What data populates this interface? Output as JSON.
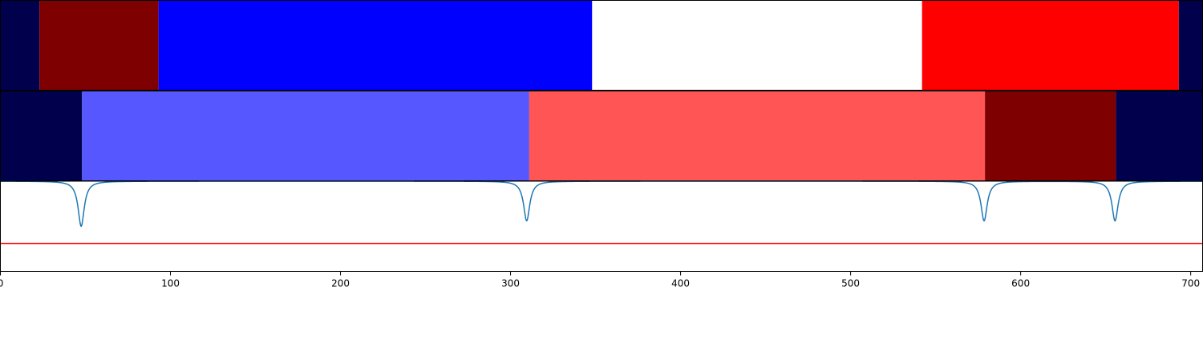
{
  "chart_data": {
    "type": "segmentation-track",
    "xlim": [
      0,
      707
    ],
    "x_ticks": [
      0,
      100,
      200,
      300,
      400,
      500,
      600,
      700
    ],
    "x_tick_labels": [
      "0",
      "100",
      "200",
      "300",
      "400",
      "500",
      "600",
      "700"
    ],
    "panels": [
      {
        "name": "",
        "type": "segments",
        "segments": [
          {
            "start": 0,
            "end": 23,
            "color": "#00004c"
          },
          {
            "start": 23,
            "end": 93,
            "color": "#7f0000"
          },
          {
            "start": 93,
            "end": 348,
            "color": "#0000ff"
          },
          {
            "start": 348,
            "end": 542,
            "color": "#ffffff"
          },
          {
            "start": 542,
            "end": 693,
            "color": "#ff0000"
          },
          {
            "start": 693,
            "end": 707,
            "color": "#00004c"
          }
        ]
      },
      {
        "name": "",
        "type": "segments",
        "segments": [
          {
            "start": 0,
            "end": 48,
            "color": "#00004c"
          },
          {
            "start": 48,
            "end": 311,
            "color": "#5757ff"
          },
          {
            "start": 311,
            "end": 579,
            "color": "#ff5555"
          },
          {
            "start": 579,
            "end": 656,
            "color": "#7f0000"
          },
          {
            "start": 656,
            "end": 707,
            "color": "#00004c"
          }
        ]
      },
      {
        "name": "",
        "type": "line",
        "ylim": [
          0,
          1
        ],
        "baseline": 1.0,
        "threshold": 0.31,
        "line_color": "#1f77b4",
        "threshold_color": "#ff0000",
        "dips": [
          {
            "x": 47.5,
            "min": 0.5,
            "width": 2.2
          },
          {
            "x": 309.5,
            "min": 0.56,
            "width": 2.2
          },
          {
            "x": 578.5,
            "min": 0.56,
            "width": 2.2
          },
          {
            "x": 655.5,
            "min": 0.56,
            "width": 2.2
          }
        ]
      }
    ]
  }
}
